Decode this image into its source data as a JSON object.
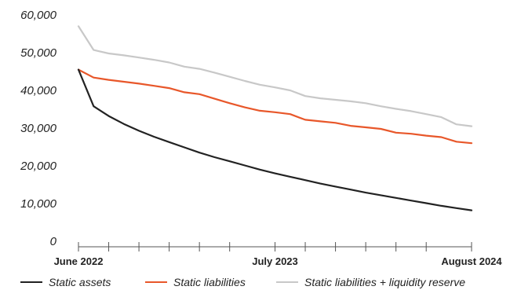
{
  "chart_data": {
    "type": "line",
    "title": "",
    "xlabel": "",
    "ylabel": "",
    "ylim": [
      0,
      60000
    ],
    "yticks": [
      0,
      10000,
      20000,
      30000,
      40000,
      50000,
      60000
    ],
    "ytick_labels": [
      "0",
      "10,000",
      "20,000",
      "30,000",
      "40,000",
      "50,000",
      "60,000"
    ],
    "x_start": "2022-06",
    "x_end": "2024-08",
    "xtick_labels": [
      {
        "date": "2022-06",
        "label": "June 2022"
      },
      {
        "date": "2023-07",
        "label": "July 2023"
      },
      {
        "date": "2024-08",
        "label": "August 2024"
      }
    ],
    "x_minor_ticks": [
      "2022-06",
      "2022-08",
      "2022-10",
      "2022-12",
      "2023-02",
      "2023-04",
      "2023-07",
      "2023-09",
      "2023-11",
      "2024-01",
      "2024-03",
      "2024-05",
      "2024-08"
    ],
    "grid": false,
    "legend_position": "bottom",
    "x": [
      "2022-06",
      "2022-07",
      "2022-08",
      "2022-09",
      "2022-10",
      "2022-11",
      "2022-12",
      "2023-01",
      "2023-02",
      "2023-03",
      "2023-04",
      "2023-05",
      "2023-06",
      "2023-07",
      "2023-08",
      "2023-09",
      "2023-10",
      "2023-11",
      "2023-12",
      "2024-01",
      "2024-02",
      "2024-03",
      "2024-04",
      "2024-05",
      "2024-06",
      "2024-07",
      "2024-08"
    ],
    "series": [
      {
        "name": "Static assets",
        "color": "#222222",
        "values": [
          45500,
          35800,
          33200,
          31100,
          29300,
          27700,
          26300,
          24900,
          23500,
          22300,
          21200,
          20100,
          19000,
          18000,
          17100,
          16200,
          15300,
          14500,
          13700,
          12900,
          12200,
          11500,
          10800,
          10100,
          9400,
          8800,
          8200
        ]
      },
      {
        "name": "Static liabilities",
        "color": "#e8572a",
        "values": [
          45500,
          43400,
          42800,
          42300,
          41800,
          41200,
          40600,
          39500,
          39000,
          37800,
          36600,
          35500,
          34600,
          34200,
          33700,
          32200,
          31800,
          31400,
          30600,
          30200,
          29800,
          28800,
          28500,
          28000,
          27600,
          26400,
          26000
        ]
      },
      {
        "name": "Static liabilities + liquidity reserve",
        "color": "#c8c8c8",
        "values": [
          57000,
          50700,
          49800,
          49300,
          48700,
          48100,
          47400,
          46300,
          45700,
          44700,
          43600,
          42500,
          41500,
          40800,
          40000,
          38500,
          37900,
          37500,
          37100,
          36600,
          35800,
          35100,
          34500,
          33700,
          32900,
          31000,
          30500
        ]
      }
    ]
  }
}
